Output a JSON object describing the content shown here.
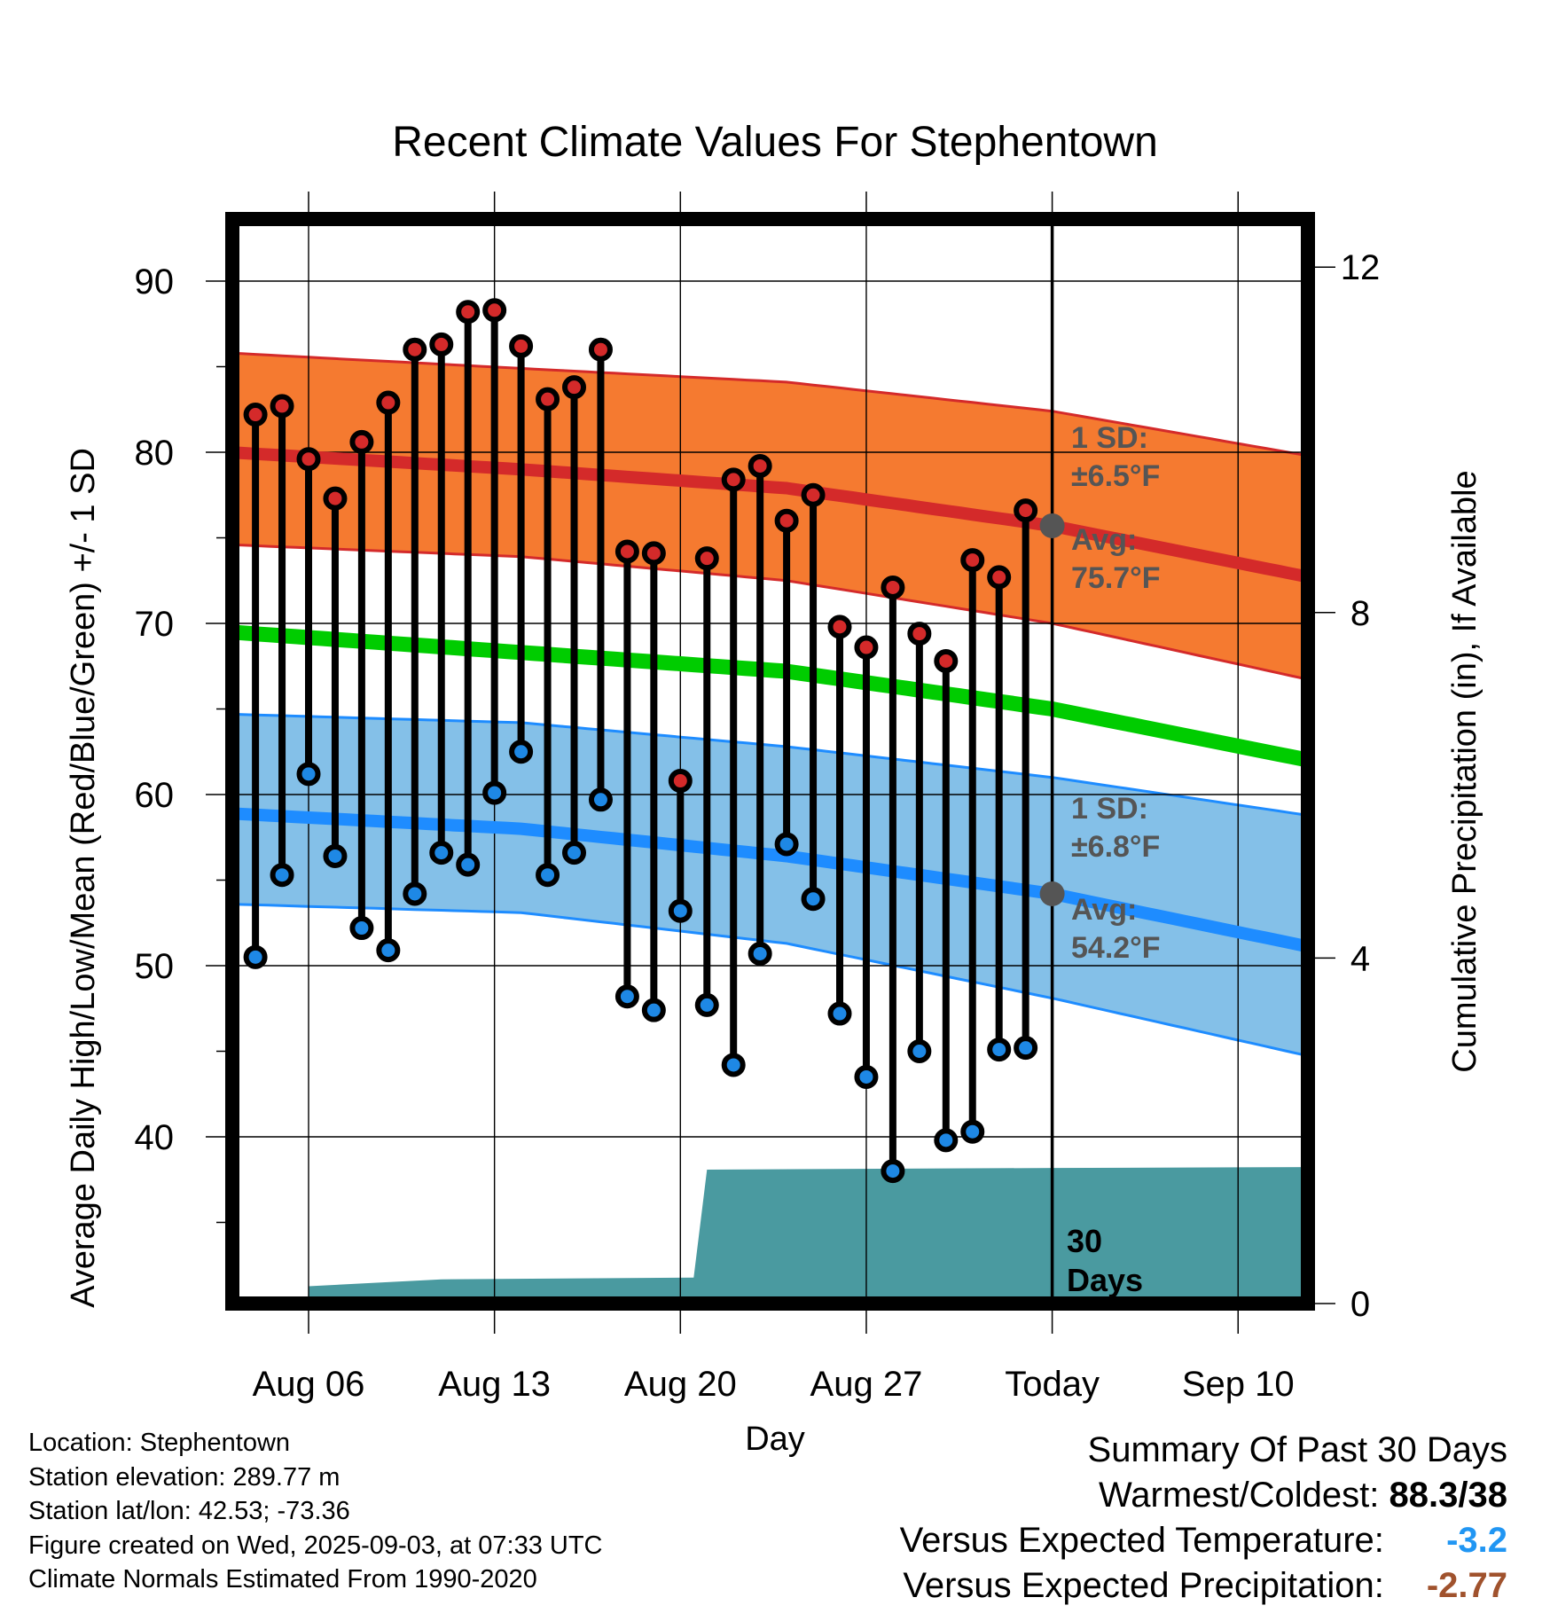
{
  "chart_data": {
    "type": "line",
    "title": "Recent Climate Values For Stephentown",
    "xlabel": "Day",
    "ylabel": "Average Daily High/Low/Mean (Red/Blue/Green) +/- 1 SD",
    "y2label": "Cumulative Precipitation (in), If Available",
    "x_start": "Aug 02",
    "x_end": "Sep 13",
    "x_ticks": [
      {
        "day": 4,
        "label": "Aug 06"
      },
      {
        "day": 11,
        "label": "Aug 13"
      },
      {
        "day": 18,
        "label": "Aug 20"
      },
      {
        "day": 25,
        "label": "Aug 27"
      },
      {
        "day": 32,
        "label": "Today"
      },
      {
        "day": 39,
        "label": "Sep 10"
      }
    ],
    "ylim": [
      29.9,
      93.5
    ],
    "y_ticks": [
      40,
      50,
      60,
      70,
      80,
      90
    ],
    "y2lim": [
      0,
      15.1
    ],
    "y2_ticks": [
      0,
      4,
      8,
      12
    ],
    "grid": true,
    "today_day": 32,
    "observed": {
      "days": [
        2,
        3,
        4,
        5,
        6,
        7,
        8,
        9,
        10,
        11,
        12,
        13,
        14,
        15,
        16,
        17,
        18,
        19,
        20,
        21,
        22,
        23,
        24,
        25,
        26,
        27,
        28,
        29,
        30,
        31
      ],
      "high": [
        82.2,
        82.7,
        79.6,
        77.3,
        80.6,
        82.9,
        86.0,
        86.3,
        88.2,
        88.3,
        86.2,
        83.1,
        83.8,
        86.0,
        74.2,
        74.1,
        60.8,
        73.8,
        78.4,
        79.2,
        76.0,
        77.5,
        69.8,
        68.6,
        72.1,
        69.4,
        67.8,
        73.7,
        72.7,
        76.6
      ],
      "low": [
        50.5,
        55.3,
        61.2,
        56.4,
        52.2,
        50.9,
        54.2,
        56.6,
        55.9,
        60.1,
        62.5,
        55.3,
        56.6,
        59.7,
        48.2,
        47.4,
        53.2,
        47.7,
        44.2,
        50.7,
        57.1,
        53.9,
        47.2,
        43.5,
        38.0,
        45.0,
        39.8,
        40.3,
        45.1,
        45.2
      ]
    },
    "normals": {
      "days": [
        1,
        12,
        22,
        32,
        42
      ],
      "high_mean": [
        80.0,
        79.0,
        77.9,
        75.7,
        72.6
      ],
      "high_upper": [
        85.8,
        84.9,
        84.1,
        82.4,
        79.7
      ],
      "high_lower": [
        74.6,
        73.9,
        72.5,
        70.0,
        66.6
      ],
      "mean": [
        69.5,
        68.3,
        67.2,
        65.0,
        61.9
      ],
      "low_mean": [
        58.9,
        58.0,
        56.4,
        54.2,
        51.0
      ],
      "low_upper": [
        64.7,
        64.2,
        62.8,
        61.0,
        58.7
      ],
      "low_lower": [
        53.6,
        53.1,
        51.3,
        48.1,
        44.6
      ]
    },
    "precip_cumulative": {
      "days": [
        4,
        9,
        18.5,
        19,
        32,
        42
      ],
      "values": [
        0.2,
        0.28,
        0.3,
        1.55,
        1.57,
        1.58
      ]
    },
    "series": [
      {
        "name": "High",
        "color": "#c62828"
      },
      {
        "name": "Low",
        "color": "#1e88e5"
      },
      {
        "name": "Mean",
        "color": "#00cc00"
      }
    ],
    "annotations": {
      "high_sd_line1": "1 SD:",
      "high_sd_line2": "±6.5°F",
      "high_avg_line1": "Avg:",
      "high_avg_line2": "75.7°F",
      "low_sd_line1": "1 SD:",
      "low_sd_line2": "±6.8°F",
      "low_avg_line1": "Avg:",
      "low_avg_line2": "54.2°F",
      "window_line1": "30",
      "window_line2": "Days"
    }
  },
  "colors": {
    "high_band": "#f57a30",
    "high_line": "#d42a2a",
    "low_band": "#84c0e8",
    "low_line": "#1e8cff",
    "mean_line": "#00cc00",
    "precip": "#4a9aa0",
    "high_marker": "#d42a2a",
    "low_marker": "#1e88e5",
    "today_dot": "#555555",
    "temp_anomaly": "#2196f3",
    "precip_anomaly": "#a0522d"
  },
  "footer": {
    "location": "Location: Stephentown",
    "elevation": "Station elevation: 289.77 m",
    "latlon": "Station lat/lon: 42.53; -73.36",
    "created": "Figure created on Wed, 2025-09-03, at 07:33 UTC",
    "normals": "Climate Normals Estimated From 1990-2020"
  },
  "summary": {
    "heading": "Summary Of Past 30 Days",
    "warmest_coldest_label": "Warmest/Coldest:",
    "warmest_coldest_value": "88.3/38",
    "temp_label": "Versus Expected Temperature:",
    "temp_value": "-3.2",
    "precip_label": "Versus Expected Precipitation:",
    "precip_value": "-2.77"
  }
}
